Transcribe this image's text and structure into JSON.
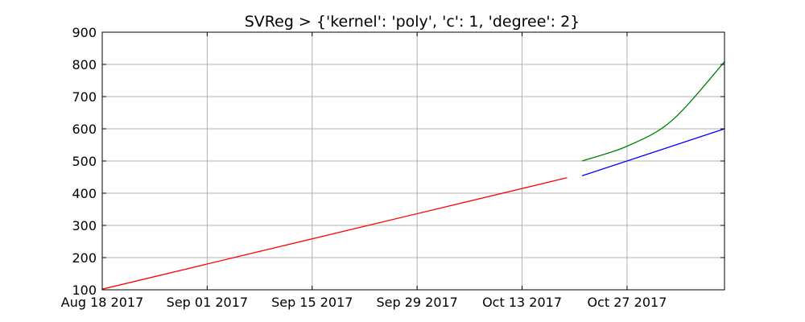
{
  "chart_data": {
    "type": "line",
    "title": "SVReg > {'kernel': 'poly', 'c': 1, 'degree': 2}",
    "xlabel": "",
    "ylabel": "",
    "grid": true,
    "x_ticks": [
      "2017-08-18",
      "2017-09-01",
      "2017-09-15",
      "2017-09-29",
      "2017-10-13",
      "2017-10-27"
    ],
    "x_tick_labels": [
      "Aug 18 2017",
      "Sep 01 2017",
      "Sep 15 2017",
      "Sep 29 2017",
      "Oct 13 2017",
      "Oct 27 2017"
    ],
    "xlim": [
      "2017-08-18",
      "2017-11-09"
    ],
    "y_ticks": [
      100,
      200,
      300,
      400,
      500,
      600,
      700,
      800,
      900
    ],
    "y_tick_labels": [
      "100",
      "200",
      "300",
      "400",
      "500",
      "600",
      "700",
      "800",
      "900"
    ],
    "ylim": [
      100,
      900
    ],
    "series": [
      {
        "color": "#ff0000",
        "points": [
          [
            "2017-08-18",
            102
          ],
          [
            "2017-10-19",
            448
          ]
        ]
      },
      {
        "color": "#0000ff",
        "points": [
          [
            "2017-10-21",
            454
          ],
          [
            "2017-11-09",
            600
          ]
        ]
      },
      {
        "color": "#008000",
        "points": [
          [
            "2017-10-21",
            500
          ],
          [
            "2017-10-27",
            546
          ],
          [
            "2017-11-02",
            626
          ],
          [
            "2017-11-09",
            808
          ]
        ]
      }
    ]
  }
}
